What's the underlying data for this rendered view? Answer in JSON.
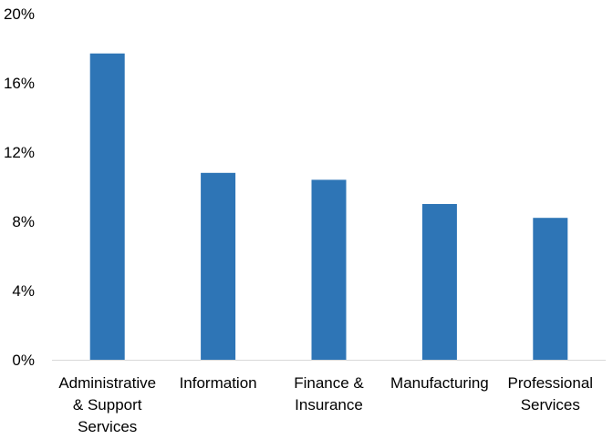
{
  "chart_data": {
    "type": "bar",
    "title": "",
    "xlabel": "",
    "ylabel": "",
    "categories": [
      [
        "Administrative",
        "& Support",
        "Services"
      ],
      [
        "Information"
      ],
      [
        "Finance &",
        "Insurance"
      ],
      [
        "Manufacturing"
      ],
      [
        "Professional",
        "Services"
      ]
    ],
    "values": [
      17.7,
      10.8,
      10.4,
      9.0,
      8.2
    ],
    "ylim": [
      0,
      20
    ],
    "yticks": [
      {
        "value": 0,
        "label": "0%"
      },
      {
        "value": 4,
        "label": "4%"
      },
      {
        "value": 8,
        "label": "8%"
      },
      {
        "value": 12,
        "label": "12%"
      },
      {
        "value": 16,
        "label": "16%"
      },
      {
        "value": 20,
        "label": "20%"
      }
    ],
    "bar_color": "#2e75b6",
    "axis_color": "#d9d9d9",
    "grid": false,
    "legend": "none"
  }
}
